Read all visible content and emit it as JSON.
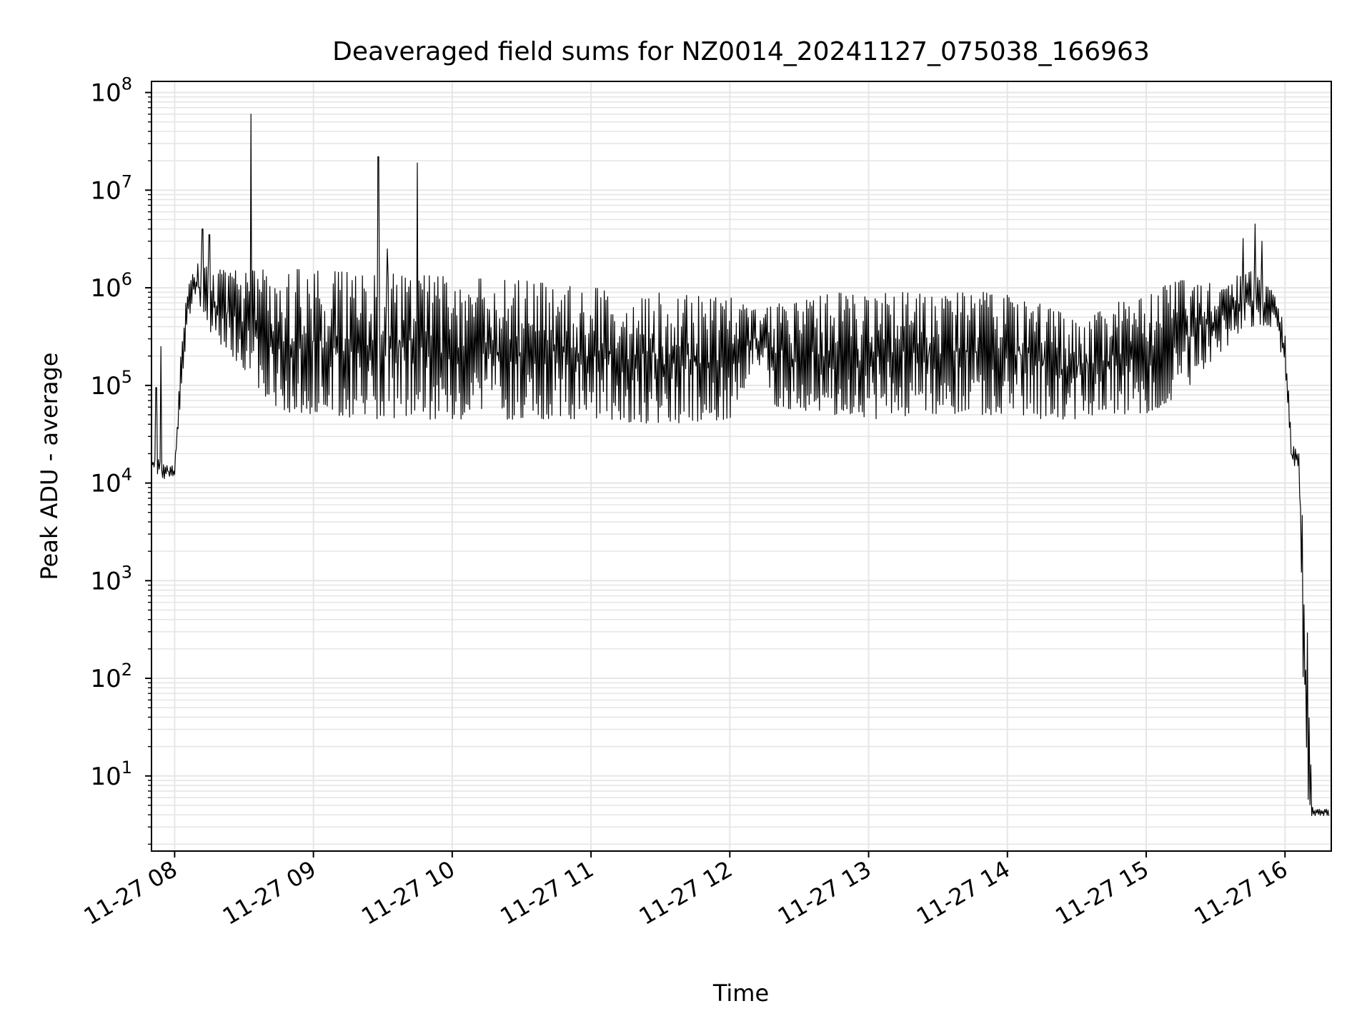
{
  "chart_data": {
    "type": "line",
    "title": "Deaveraged field sums for NZ0014_20241127_075038_166963",
    "xlabel": "Time",
    "ylabel": "Peak ADU - average",
    "y_scale": "log",
    "grid": true,
    "grid_minor": true,
    "line_color": "#000000",
    "grid_color": "#e6e6e6",
    "x_range": [
      "2024-11-27 07:50",
      "2024-11-27 16:20"
    ],
    "ylim": [
      1.7,
      130000000
    ],
    "x_ticks": [
      {
        "time": "2024-11-27 08:00",
        "label": "11-27 08"
      },
      {
        "time": "2024-11-27 09:00",
        "label": "11-27 09"
      },
      {
        "time": "2024-11-27 10:00",
        "label": "11-27 10"
      },
      {
        "time": "2024-11-27 11:00",
        "label": "11-27 11"
      },
      {
        "time": "2024-11-27 12:00",
        "label": "11-27 12"
      },
      {
        "time": "2024-11-27 13:00",
        "label": "11-27 13"
      },
      {
        "time": "2024-11-27 14:00",
        "label": "11-27 14"
      },
      {
        "time": "2024-11-27 15:00",
        "label": "11-27 15"
      },
      {
        "time": "2024-11-27 16:00",
        "label": "11-27 16"
      }
    ],
    "y_ticks": [
      {
        "value": 10,
        "base": "10",
        "exp": "1"
      },
      {
        "value": 100,
        "base": "10",
        "exp": "2"
      },
      {
        "value": 1000,
        "base": "10",
        "exp": "3"
      },
      {
        "value": 10000,
        "base": "10",
        "exp": "4"
      },
      {
        "value": 100000,
        "base": "10",
        "exp": "5"
      },
      {
        "value": 1000000,
        "base": "10",
        "exp": "6"
      },
      {
        "value": 10000000,
        "base": "10",
        "exp": "7"
      },
      {
        "value": 100000000,
        "base": "10",
        "exp": "8"
      }
    ],
    "series": [
      {
        "envelope": [
          {
            "time": "2024-11-27 07:50",
            "low": 14000,
            "high": 20000
          },
          {
            "time": "2024-11-27 07:55",
            "low": 11000,
            "high": 16000
          },
          {
            "time": "2024-11-27 08:00",
            "low": 11000,
            "high": 15000
          },
          {
            "time": "2024-11-27 08:03",
            "low": 100000,
            "high": 300000
          },
          {
            "time": "2024-11-27 08:06",
            "low": 500000,
            "high": 1200000
          },
          {
            "time": "2024-11-27 08:09",
            "low": 700000,
            "high": 1800000
          },
          {
            "time": "2024-11-27 08:15",
            "low": 350000,
            "high": 1600000
          },
          {
            "time": "2024-11-27 08:25",
            "low": 200000,
            "high": 1500000
          },
          {
            "time": "2024-11-27 08:35",
            "low": 100000,
            "high": 1500000
          },
          {
            "time": "2024-11-27 08:45",
            "low": 55000,
            "high": 1600000
          },
          {
            "time": "2024-11-27 09:00",
            "low": 50000,
            "high": 1500000
          },
          {
            "time": "2024-11-27 09:30",
            "low": 45000,
            "high": 1400000
          },
          {
            "time": "2024-11-27 10:00",
            "low": 45000,
            "high": 1300000
          },
          {
            "time": "2024-11-27 10:30",
            "low": 45000,
            "high": 1200000
          },
          {
            "time": "2024-11-27 11:00",
            "low": 45000,
            "high": 1000000
          },
          {
            "time": "2024-11-27 11:30",
            "low": 40000,
            "high": 900000
          },
          {
            "time": "2024-11-27 12:00",
            "low": 45000,
            "high": 800000
          },
          {
            "time": "2024-11-27 12:10",
            "low": 150000,
            "high": 600000
          },
          {
            "time": "2024-11-27 12:20",
            "low": 60000,
            "high": 700000
          },
          {
            "time": "2024-11-27 12:45",
            "low": 50000,
            "high": 900000
          },
          {
            "time": "2024-11-27 13:00",
            "low": 45000,
            "high": 900000
          },
          {
            "time": "2024-11-27 13:30",
            "low": 50000,
            "high": 900000
          },
          {
            "time": "2024-11-27 14:00",
            "low": 50000,
            "high": 900000
          },
          {
            "time": "2024-11-27 14:15",
            "low": 45000,
            "high": 700000
          },
          {
            "time": "2024-11-27 14:30",
            "low": 45000,
            "high": 500000
          },
          {
            "time": "2024-11-27 15:00",
            "low": 50000,
            "high": 900000
          },
          {
            "time": "2024-11-27 15:15",
            "low": 80000,
            "high": 1200000
          },
          {
            "time": "2024-11-27 15:30",
            "low": 200000,
            "high": 1100000
          },
          {
            "time": "2024-11-27 15:45",
            "low": 400000,
            "high": 1500000
          },
          {
            "time": "2024-11-27 15:55",
            "low": 400000,
            "high": 900000
          },
          {
            "time": "2024-11-27 16:00",
            "low": 150000,
            "high": 400000
          },
          {
            "time": "2024-11-27 16:03",
            "low": 15000,
            "high": 25000
          },
          {
            "time": "2024-11-27 16:06",
            "low": 15000,
            "high": 20000
          },
          {
            "time": "2024-11-27 16:09",
            "low": 3.9,
            "high": 1000
          },
          {
            "time": "2024-11-27 16:12",
            "low": 3.9,
            "high": 4.6
          },
          {
            "time": "2024-11-27 16:19",
            "low": 3.9,
            "high": 4.6
          }
        ],
        "spikes": [
          {
            "time": "2024-11-27 07:52",
            "value": 95000
          },
          {
            "time": "2024-11-27 07:54",
            "value": 250000
          },
          {
            "time": "2024-11-27 08:12",
            "value": 4000000
          },
          {
            "time": "2024-11-27 08:15",
            "value": 3500000
          },
          {
            "time": "2024-11-27 08:33",
            "value": 60000000
          },
          {
            "time": "2024-11-27 09:28",
            "value": 22000000
          },
          {
            "time": "2024-11-27 09:32",
            "value": 2500000
          },
          {
            "time": "2024-11-27 09:45",
            "value": 19000000
          },
          {
            "time": "2024-11-27 15:42",
            "value": 3200000
          },
          {
            "time": "2024-11-27 15:47",
            "value": 4500000
          },
          {
            "time": "2024-11-27 15:50",
            "value": 3000000
          }
        ]
      }
    ]
  }
}
